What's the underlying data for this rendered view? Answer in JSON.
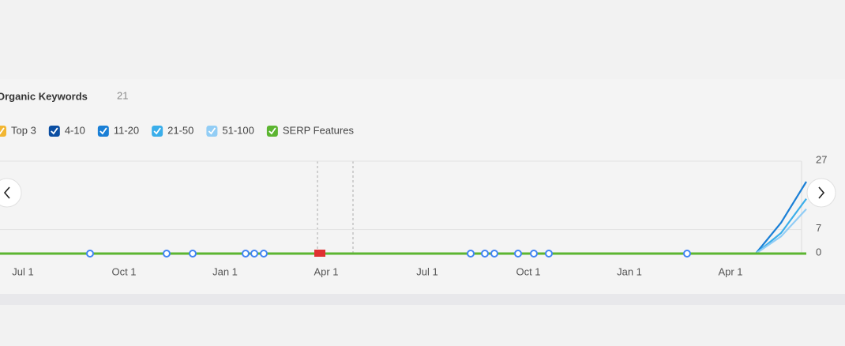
{
  "chart_data": {
    "type": "line",
    "title": "Organic Keywords",
    "subtitle": "21",
    "categories": [
      null,
      "Jul 1",
      null,
      null,
      null,
      "Oct 1",
      null,
      null,
      null,
      "Jan 1",
      null,
      null,
      null,
      "Apr 1",
      null,
      null,
      null,
      "Jul 1",
      null,
      null,
      null,
      "Oct 1",
      null,
      null,
      null,
      "Jan 1",
      null,
      null,
      null,
      "Apr 1",
      null,
      null,
      null
    ],
    "series": [
      {
        "name": "Top 3",
        "color": "#f2b632",
        "values": [
          0,
          0,
          0,
          0,
          0,
          0,
          0,
          0,
          0,
          0,
          0,
          0,
          0,
          0,
          0,
          0,
          0,
          0,
          0,
          0,
          0,
          0,
          0,
          0,
          0,
          0,
          0,
          0,
          0,
          0,
          0,
          0,
          0
        ]
      },
      {
        "name": "4-10",
        "color": "#0b4ea2",
        "values": [
          0,
          0,
          0,
          0,
          0,
          0,
          0,
          0,
          0,
          0,
          0,
          0,
          0,
          0,
          0,
          0,
          0,
          0,
          0,
          0,
          0,
          0,
          0,
          0,
          0,
          0,
          0,
          0,
          0,
          0,
          0,
          0,
          0
        ]
      },
      {
        "name": "11-20",
        "color": "#1a7fd6",
        "values": [
          0,
          0,
          0,
          0,
          0,
          0,
          0,
          0,
          0,
          0,
          0,
          0,
          0,
          0,
          0,
          0,
          0,
          0,
          0,
          0,
          0,
          0,
          0,
          0,
          0,
          0,
          0,
          0,
          0,
          0,
          0,
          9,
          21
        ]
      },
      {
        "name": "21-50",
        "color": "#3aaeea",
        "values": [
          0,
          0,
          0,
          0,
          0,
          0,
          0,
          0,
          0,
          0,
          0,
          0,
          0,
          0,
          0,
          0,
          0,
          0,
          0,
          0,
          0,
          0,
          0,
          0,
          0,
          0,
          0,
          0,
          0,
          0,
          0,
          6,
          16
        ]
      },
      {
        "name": "51-100",
        "color": "#92cdf5",
        "values": [
          0,
          0,
          0,
          0,
          0,
          0,
          0,
          0,
          0,
          0,
          0,
          0,
          0,
          0,
          0,
          0,
          0,
          0,
          0,
          0,
          0,
          0,
          0,
          0,
          0,
          0,
          0,
          0,
          0,
          0,
          0,
          5,
          13
        ]
      },
      {
        "name": "SERP Features",
        "color": "#5cb531",
        "values": [
          0,
          0,
          0,
          0,
          0,
          0,
          0,
          0,
          0,
          0,
          0,
          0,
          0,
          0,
          0,
          0,
          0,
          0,
          0,
          0,
          0,
          0,
          0,
          0,
          0,
          0,
          0,
          0,
          0,
          0,
          0,
          0,
          0
        ]
      }
    ],
    "ylim": [
      0,
      27
    ],
    "yticks": [
      0,
      7,
      27
    ],
    "grid": true
  }
}
